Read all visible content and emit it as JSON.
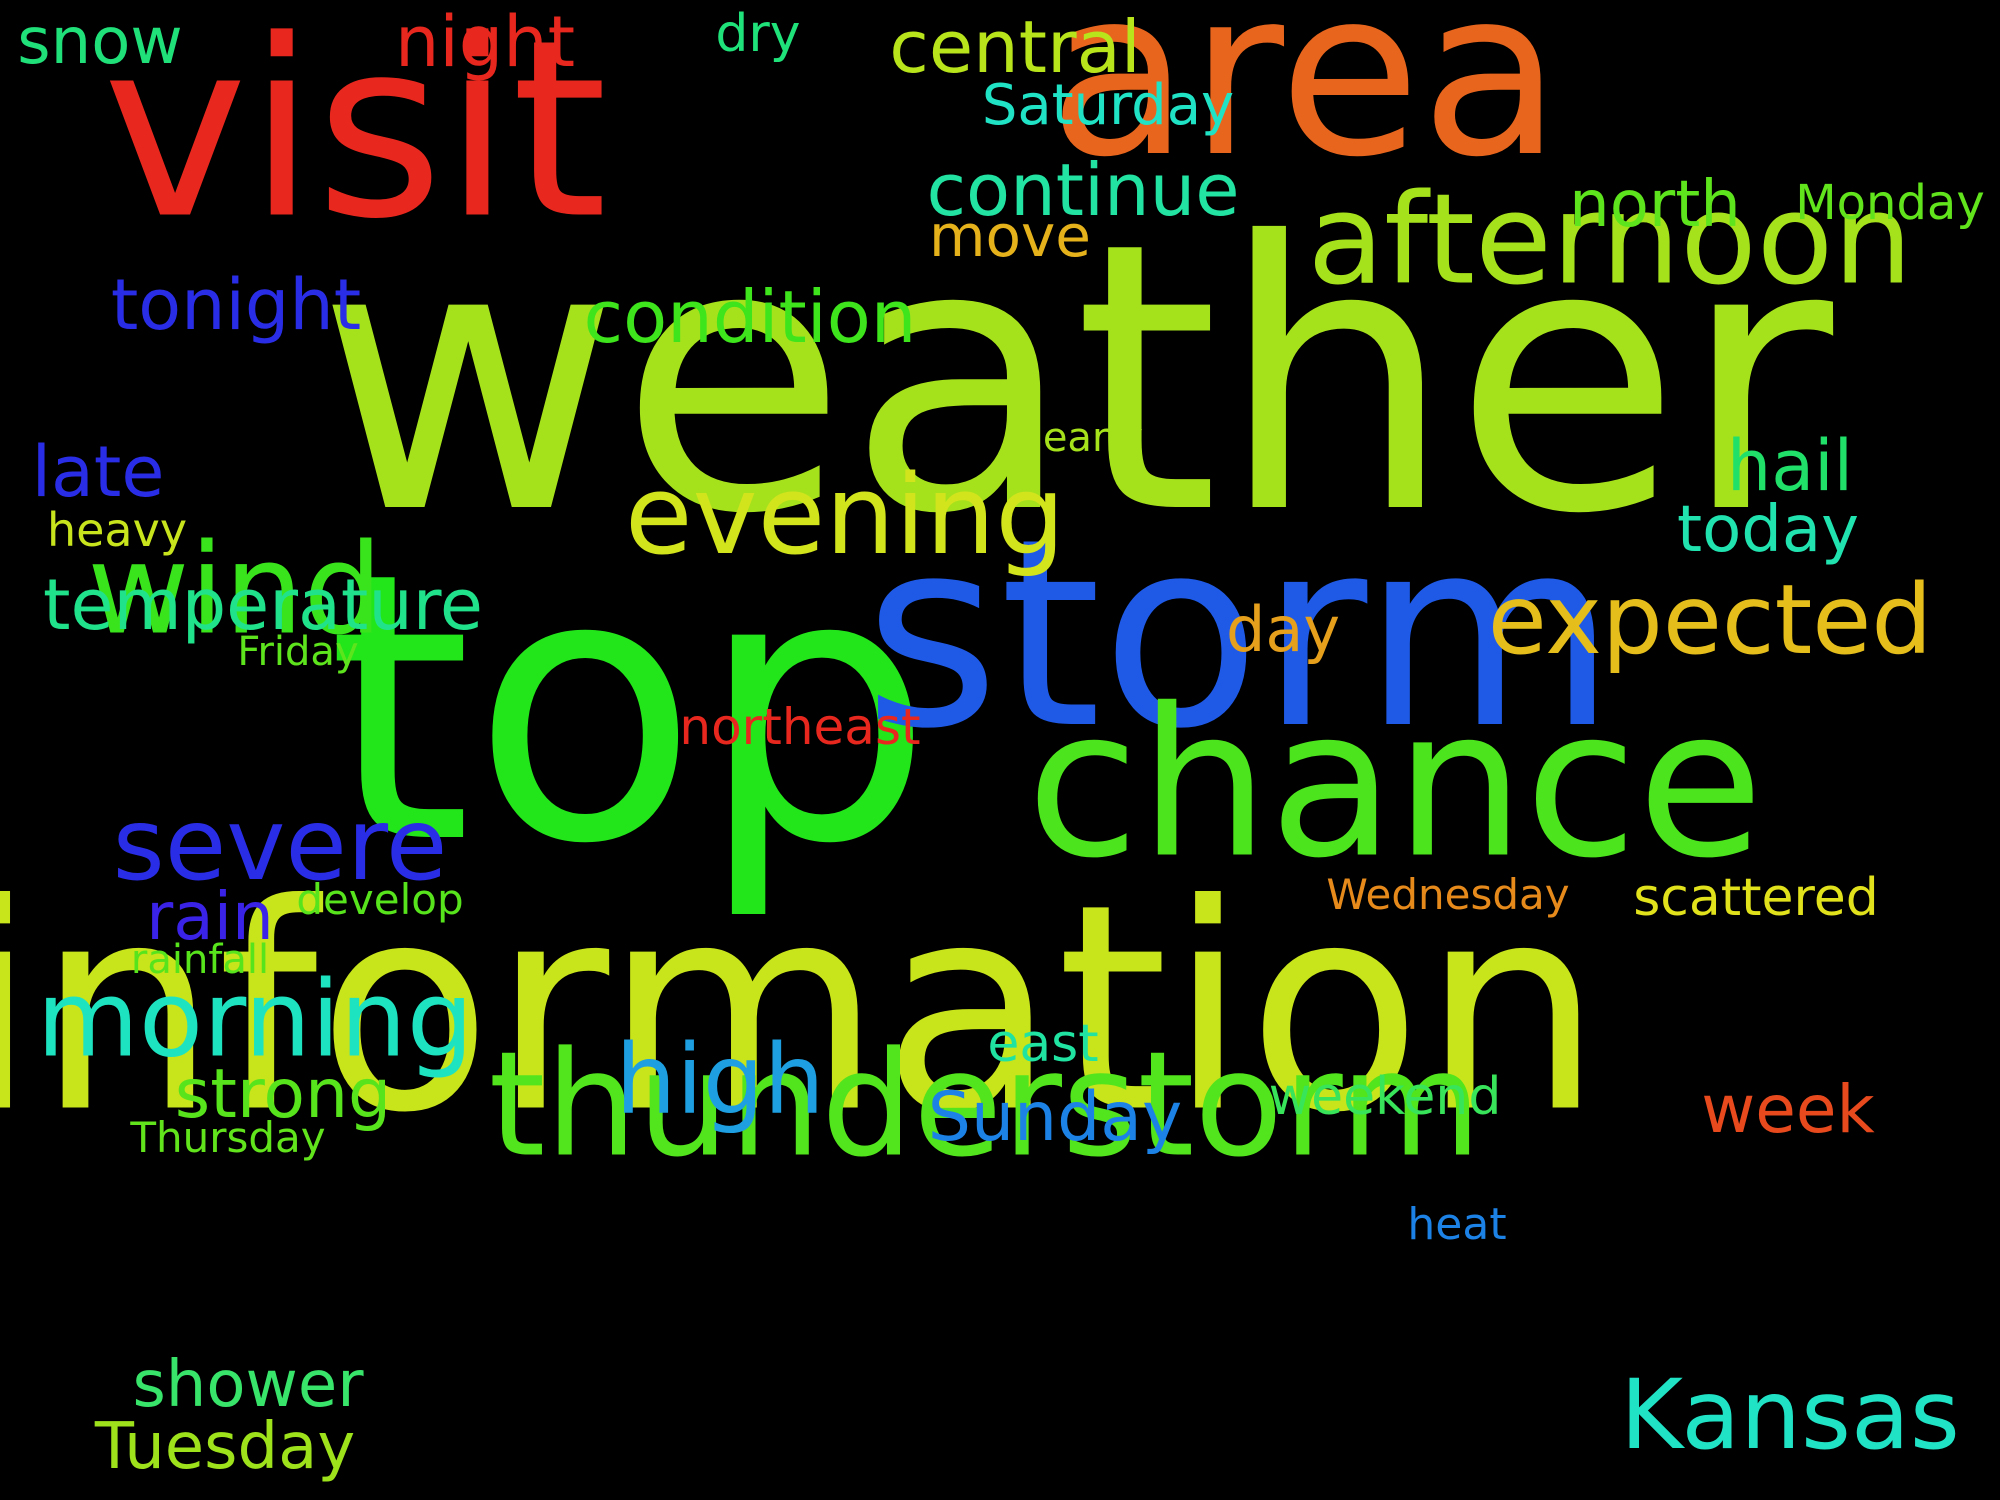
{
  "background_color": "#000000",
  "words": [
    {
      "text": "weather",
      "color": "#a6e21c"
    },
    {
      "text": "top",
      "color": "#22e61a"
    },
    {
      "text": "information",
      "color": "#c8e41a"
    },
    {
      "text": "storm",
      "color": "#1f5ae6"
    },
    {
      "text": "visit",
      "color": "#e8281e"
    },
    {
      "text": "area",
      "color": "#e8651d"
    },
    {
      "text": "chance",
      "color": "#4ce41c"
    },
    {
      "text": "thunderstorm",
      "color": "#52e41c"
    },
    {
      "text": "afternoon",
      "color": "#a6e21c"
    },
    {
      "text": "evening",
      "color": "#d2e41c"
    },
    {
      "text": "wind",
      "color": "#3ae41c"
    },
    {
      "text": "expected",
      "color": "#e6be1c"
    },
    {
      "text": "morning",
      "color": "#1ee3c0"
    },
    {
      "text": "severe",
      "color": "#2a2de6"
    },
    {
      "text": "Kansas",
      "color": "#20e3c6"
    },
    {
      "text": "high",
      "color": "#1d9fe2"
    },
    {
      "text": "condition",
      "color": "#3ee41c"
    },
    {
      "text": "continue",
      "color": "#22e3a2"
    },
    {
      "text": "temperature",
      "color": "#20e28a"
    },
    {
      "text": "tonight",
      "color": "#2a2de6"
    },
    {
      "text": "central",
      "color": "#b8e41c"
    },
    {
      "text": "north",
      "color": "#5ee41c"
    },
    {
      "text": "Sunday",
      "color": "#1d82e6"
    },
    {
      "text": "strong",
      "color": "#58e41c"
    },
    {
      "text": "shower",
      "color": "#38e46a"
    },
    {
      "text": "Tuesday",
      "color": "#9ee21c"
    },
    {
      "text": "today",
      "color": "#20e3b0"
    },
    {
      "text": "hail",
      "color": "#20e06a"
    },
    {
      "text": "week",
      "color": "#e84a1e"
    },
    {
      "text": "late",
      "color": "#2a2de6"
    },
    {
      "text": "rain",
      "color": "#3a22e6"
    },
    {
      "text": "Saturday",
      "color": "#20e3c6"
    },
    {
      "text": "night",
      "color": "#e8281e"
    },
    {
      "text": "snow",
      "color": "#20e07a"
    },
    {
      "text": "move",
      "color": "#e6b21c"
    },
    {
      "text": "scattered",
      "color": "#e2e21c"
    },
    {
      "text": "day",
      "color": "#e6a01c"
    },
    {
      "text": "weekend",
      "color": "#38e45a"
    },
    {
      "text": "Monday",
      "color": "#62e41c"
    },
    {
      "text": "east",
      "color": "#20e3a2"
    },
    {
      "text": "northeast",
      "color": "#e8281e"
    },
    {
      "text": "heavy",
      "color": "#c8e41c"
    },
    {
      "text": "Wednesday",
      "color": "#e68a1c"
    },
    {
      "text": "dry",
      "color": "#20e27a"
    },
    {
      "text": "develop",
      "color": "#58e41c"
    },
    {
      "text": "rainfall",
      "color": "#58e41c"
    },
    {
      "text": "Thursday",
      "color": "#62e41c"
    },
    {
      "text": "early",
      "color": "#a6e21c"
    },
    {
      "text": "Friday",
      "color": "#5ee41c"
    },
    {
      "text": "heat",
      "color": "#1d82e6"
    }
  ]
}
